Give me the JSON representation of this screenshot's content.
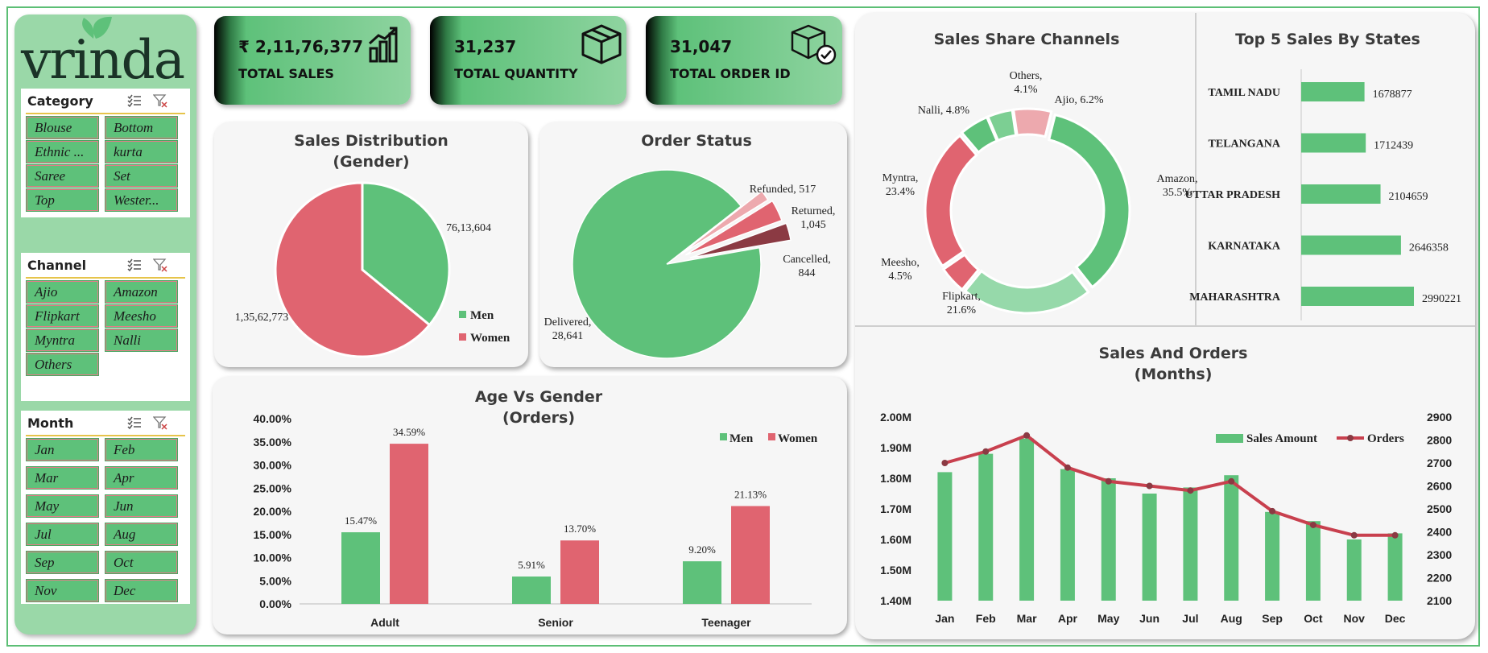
{
  "brand": {
    "logo_text": "vrinda"
  },
  "slicers": {
    "category": {
      "title": "Category",
      "items": [
        "Blouse",
        "Bottom",
        "Ethnic ...",
        "kurta",
        "Saree",
        "Set",
        "Top",
        "Wester..."
      ]
    },
    "channel": {
      "title": "Channel",
      "items": [
        "Ajio",
        "Amazon",
        "Flipkart",
        "Meesho",
        "Myntra",
        "Nalli",
        "Others"
      ]
    },
    "month": {
      "title": "Month",
      "items": [
        "Jan",
        "Feb",
        "Mar",
        "Apr",
        "May",
        "Jun",
        "Jul",
        "Aug",
        "Sep",
        "Oct",
        "Nov",
        "Dec"
      ]
    }
  },
  "kpis": {
    "total_sales": {
      "value": "₹ 2,11,76,377",
      "label": "TOTAL SALES",
      "icon": "bar-chart-icon"
    },
    "total_quantity": {
      "value": "31,237",
      "label": "TOTAL QUANTITY",
      "icon": "box-icon"
    },
    "total_orders": {
      "value": "31,047",
      "label": "TOTAL ORDER ID",
      "icon": "box-check-icon"
    }
  },
  "colors": {
    "green": "#5ec17a",
    "light_green": "#96d9aa",
    "red": "#e06470",
    "dark_red": "#8b3a43",
    "pink": "#eda9ae",
    "line_red": "#c8404e"
  },
  "chart_data": [
    {
      "id": "gender",
      "type": "pie",
      "title": "Sales Distribution",
      "subtitle": "(Gender)",
      "labels": [
        "Men",
        "Women"
      ],
      "values": [
        7613604,
        13562773
      ],
      "data_labels": [
        "76,13,604",
        "1,35,62,773"
      ],
      "legend": "right"
    },
    {
      "id": "order_status",
      "type": "pie",
      "title": "Order Status",
      "labels": [
        "Delivered",
        "Refunded",
        "Returned",
        "Cancelled"
      ],
      "values": [
        28641,
        517,
        1045,
        844
      ],
      "data_labels": [
        "Delivered,\n28,641",
        "Refunded, 517",
        "Returned,\n1,045",
        "Cancelled,\n844"
      ]
    },
    {
      "id": "channels",
      "type": "pie",
      "title": "Sales Share Channels",
      "labels": [
        "Amazon",
        "Flipkart",
        "Meesho",
        "Myntra",
        "Nalli",
        "Others",
        "Ajio"
      ],
      "values": [
        35.5,
        21.6,
        4.5,
        23.4,
        4.8,
        4.1,
        6.2
      ],
      "data_labels": [
        "Amazon,\n35.5%",
        "Flipkart,\n21.6%",
        "Meesho,\n4.5%",
        "Myntra,\n23.4%",
        "Nalli, 4.8%",
        "Others,\n4.1%",
        "Ajio, 6.2%"
      ]
    },
    {
      "id": "states",
      "type": "bar",
      "orientation": "horizontal",
      "title": "Top 5 Sales By States",
      "categories": [
        "TAMIL NADU",
        "TELANGANA",
        "UTTAR PRADESH",
        "KARNATAKA",
        "MAHARASHTRA"
      ],
      "values": [
        1678877,
        1712439,
        2104659,
        2646358,
        2990221
      ]
    },
    {
      "id": "age_gender",
      "type": "bar",
      "title": "Age Vs Gender",
      "subtitle": "(Orders)",
      "categories": [
        "Adult",
        "Senior",
        "Teenager"
      ],
      "series": [
        {
          "name": "Men",
          "values": [
            15.47,
            5.91,
            9.2
          ],
          "labels": [
            "15.47%",
            "5.91%",
            "9.20%"
          ]
        },
        {
          "name": "Women",
          "values": [
            34.59,
            13.7,
            21.13
          ],
          "labels": [
            "34.59%",
            "13.70%",
            "21.13%"
          ]
        }
      ],
      "ylim": [
        0,
        40
      ],
      "yticks": [
        "0.00%",
        "5.00%",
        "10.00%",
        "15.00%",
        "20.00%",
        "25.00%",
        "30.00%",
        "35.00%",
        "40.00%"
      ],
      "legend": "top-right"
    },
    {
      "id": "sales_orders",
      "type": "bar",
      "title": "Sales And Orders",
      "subtitle": "(Months)",
      "categories": [
        "Jan",
        "Feb",
        "Mar",
        "Apr",
        "May",
        "Jun",
        "Jul",
        "Aug",
        "Sep",
        "Oct",
        "Nov",
        "Dec"
      ],
      "series": [
        {
          "name": "Sales Amount",
          "type": "bar",
          "values": [
            1.82,
            1.88,
            1.93,
            1.83,
            1.8,
            1.75,
            1.77,
            1.81,
            1.69,
            1.66,
            1.6,
            1.62
          ]
        },
        {
          "name": "Orders",
          "type": "line",
          "axis": "right",
          "values": [
            2700,
            2750,
            2820,
            2680,
            2620,
            2600,
            2580,
            2620,
            2490,
            2430,
            2385,
            2385
          ]
        }
      ],
      "ylim": [
        1.4,
        2.0
      ],
      "yticks": [
        "1.40M",
        "1.50M",
        "1.60M",
        "1.70M",
        "1.80M",
        "1.90M",
        "2.00M"
      ],
      "y2lim": [
        2100,
        2900
      ],
      "y2ticks": [
        "2100",
        "2200",
        "2300",
        "2400",
        "2500",
        "2600",
        "2700",
        "2800",
        "2900"
      ],
      "legend": "top-right"
    }
  ]
}
